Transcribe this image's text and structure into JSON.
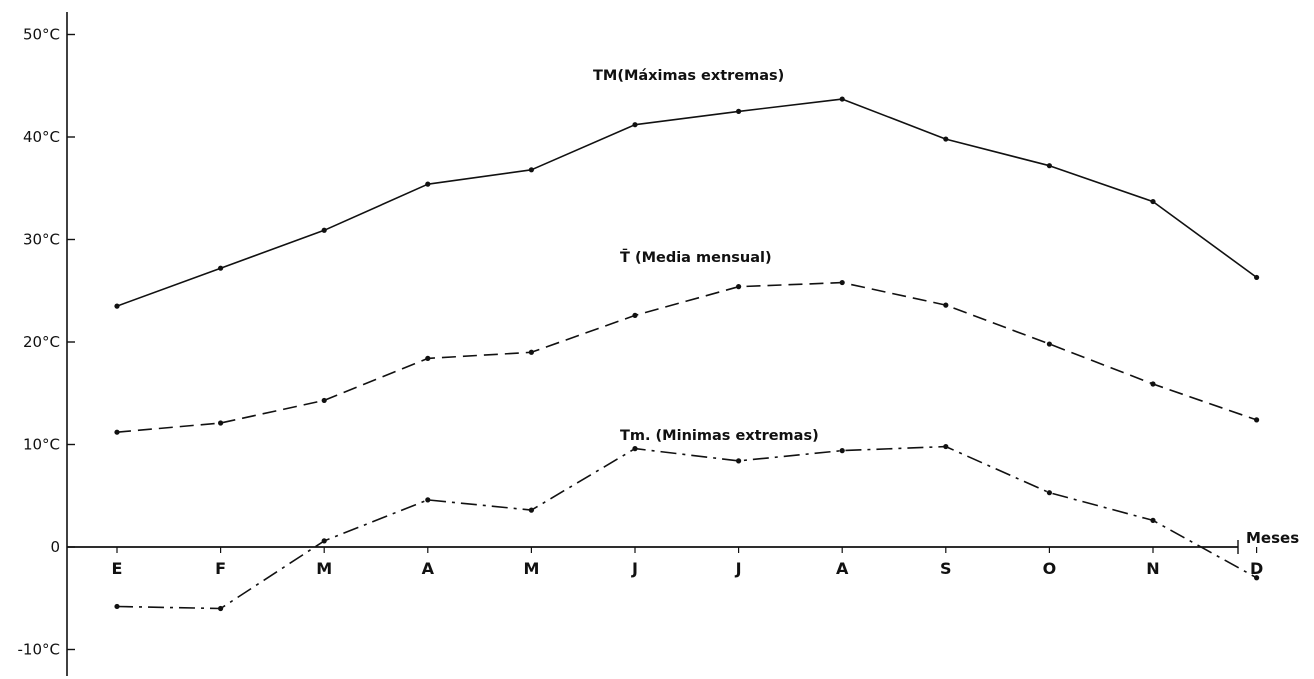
{
  "chart_data": {
    "type": "line",
    "categories": [
      "E",
      "F",
      "M",
      "A",
      "M",
      "J",
      "J",
      "A",
      "S",
      "O",
      "N",
      "D"
    ],
    "xlabel": "Meses",
    "ylim": [
      -12,
      52
    ],
    "y_ticks": [
      {
        "value": 50,
        "label": "50°C"
      },
      {
        "value": 40,
        "label": "40°C"
      },
      {
        "value": 30,
        "label": "30°C"
      },
      {
        "value": 20,
        "label": "20°C"
      },
      {
        "value": 10,
        "label": "10°C"
      },
      {
        "value": 0,
        "label": "0"
      },
      {
        "value": -10,
        "label": "-10°C"
      }
    ],
    "grid": false,
    "series": [
      {
        "name": "TM(Máximas extremas)",
        "style": "solid",
        "values": [
          23.5,
          27.2,
          30.9,
          35.4,
          36.8,
          41.2,
          42.5,
          43.7,
          39.8,
          37.2,
          33.7,
          26.3
        ]
      },
      {
        "name": "T̄ (Media mensual)",
        "style": "dashed",
        "values": [
          11.2,
          12.1,
          14.3,
          18.4,
          19.0,
          22.6,
          25.4,
          25.8,
          23.6,
          19.8,
          15.9,
          12.4
        ]
      },
      {
        "name": "Tm. (Minimas extremas)",
        "style": "dashdot",
        "values": [
          -5.8,
          -6.0,
          0.6,
          4.6,
          3.6,
          9.6,
          8.4,
          9.4,
          9.8,
          5.3,
          2.6,
          -3.0
        ]
      }
    ]
  }
}
